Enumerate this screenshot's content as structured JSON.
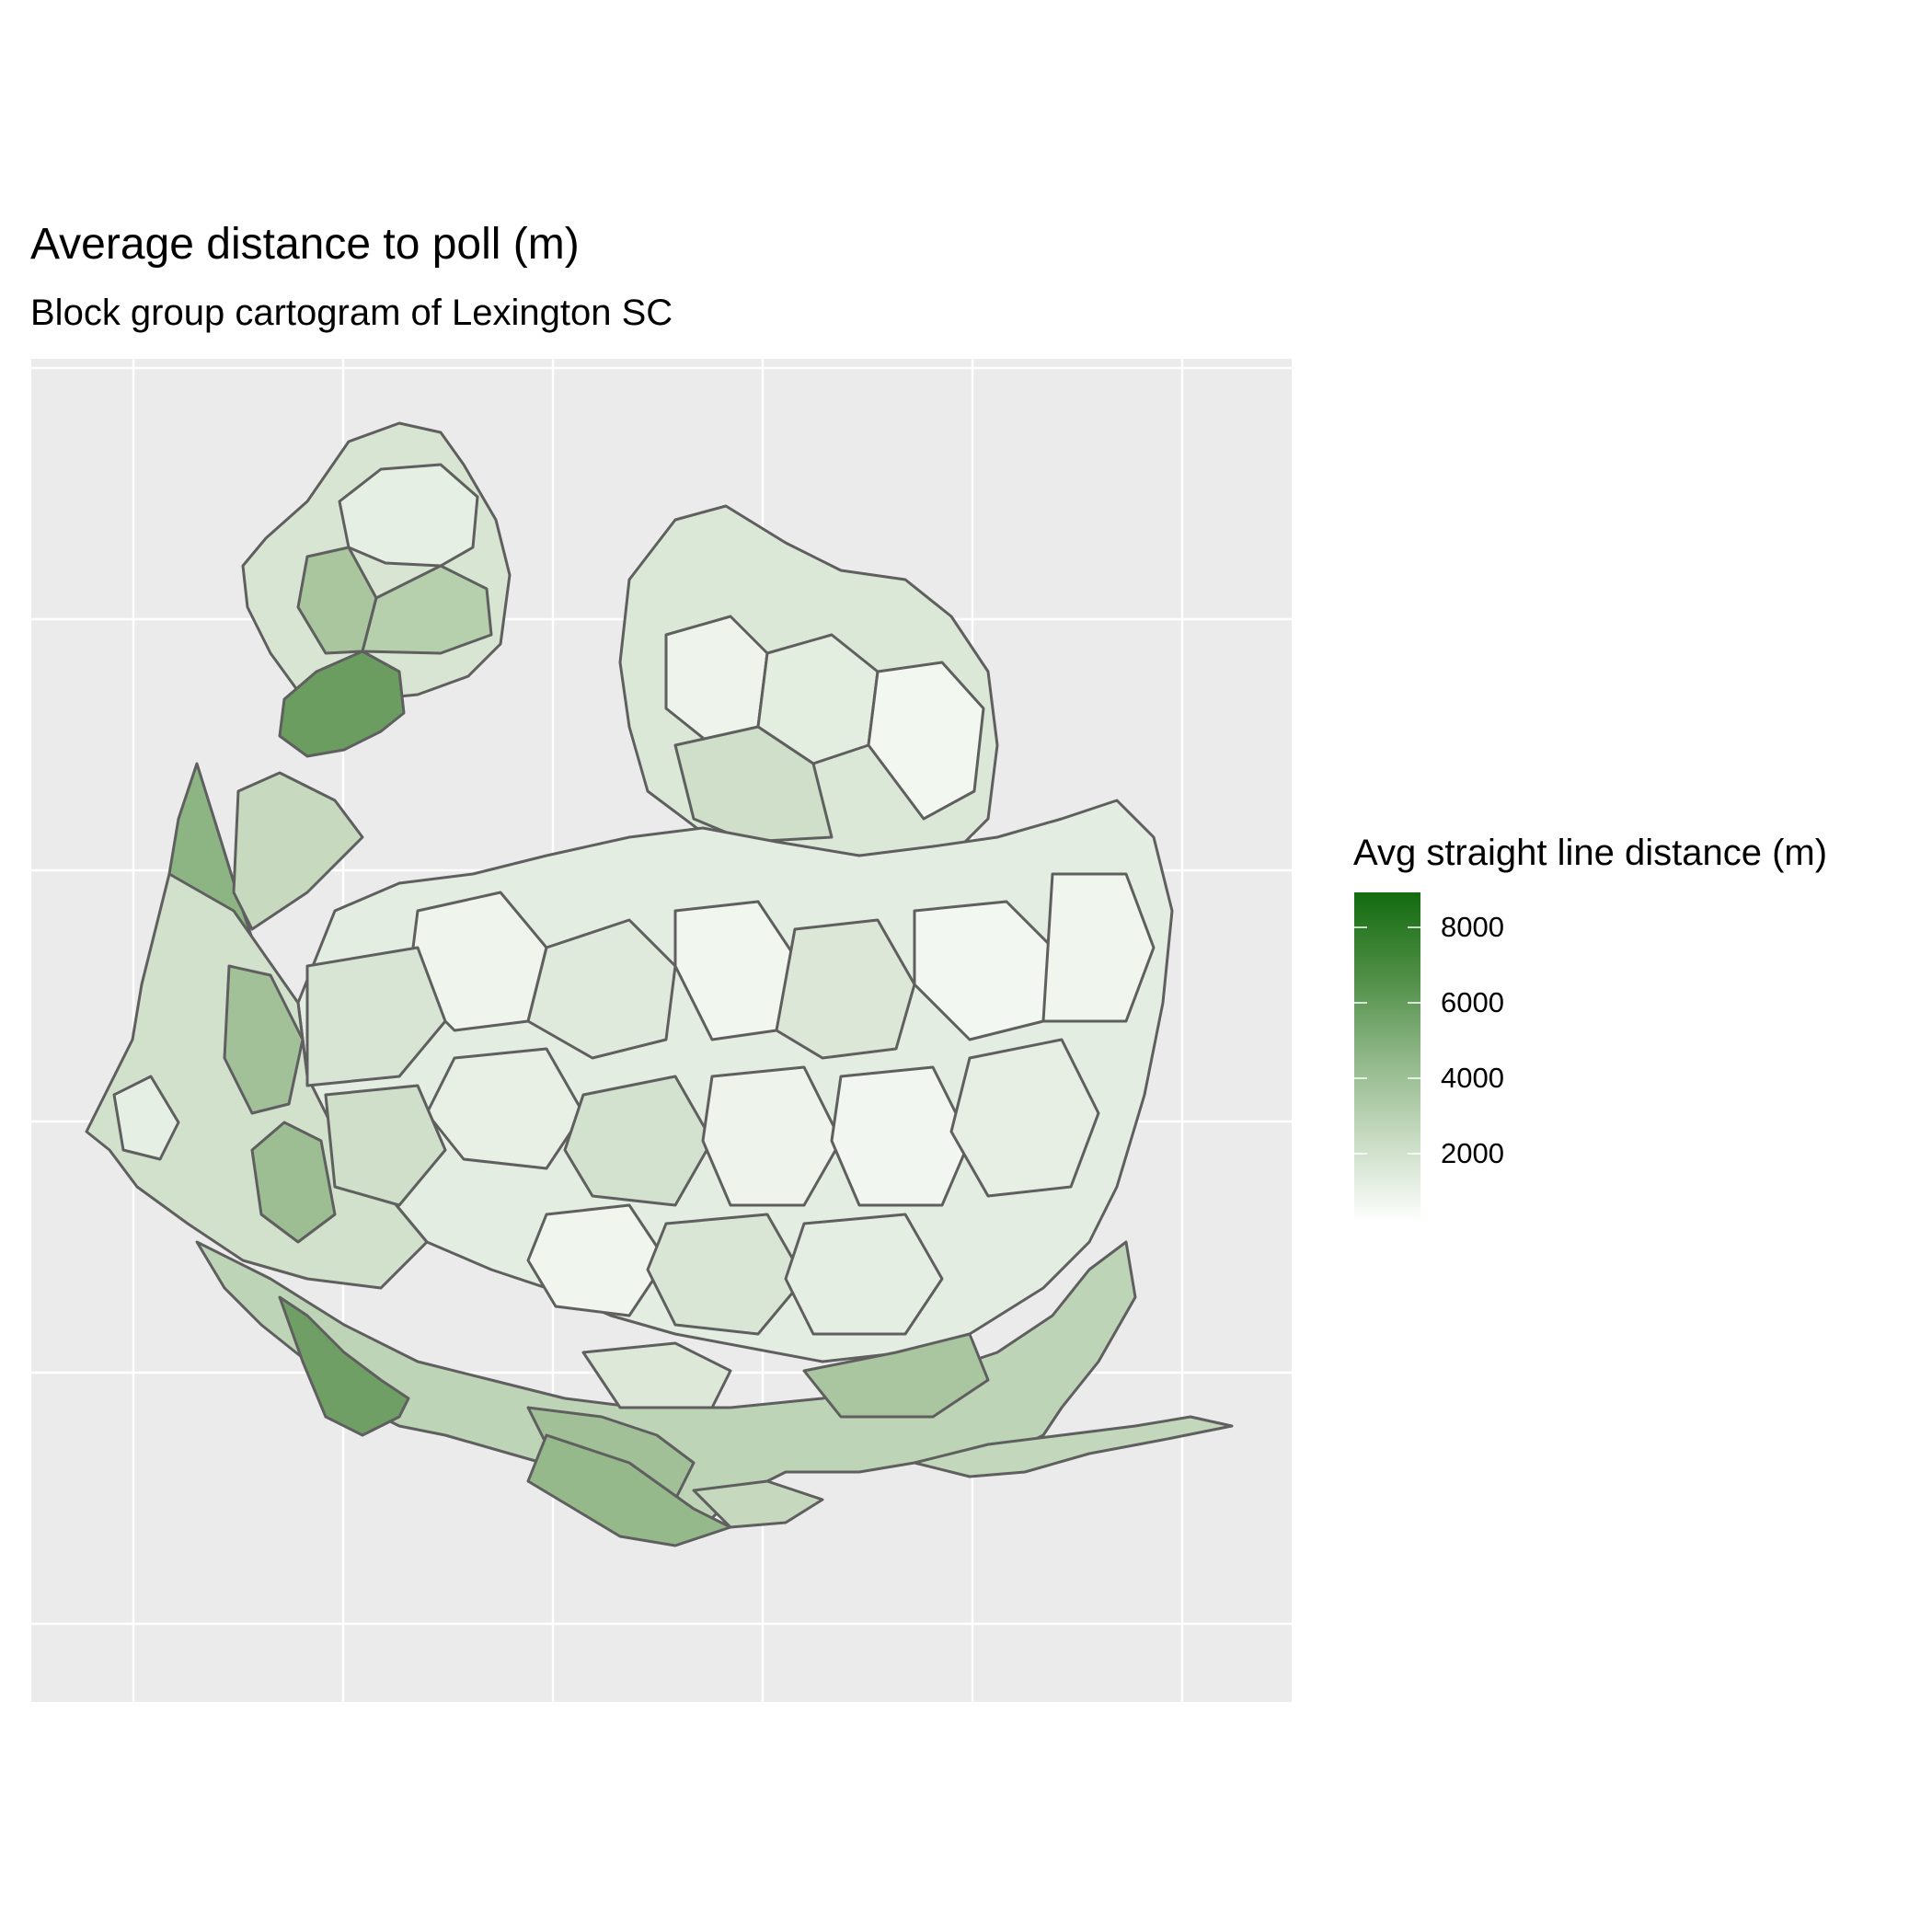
{
  "title": "Average distance to poll (m)",
  "subtitle": "Block group cartogram of Lexington SC",
  "legend": {
    "title": "Avg straight line distance (m)",
    "ticks": [
      "8000",
      "6000",
      "4000",
      "2000"
    ],
    "low_color": "#ffffff",
    "high_color": "#136b0f"
  },
  "colors": {
    "panel_background": "#ebebeb",
    "grid": "#ffffff",
    "outline": "#5f5f5f"
  },
  "chart_data": {
    "type": "choropleth cartogram",
    "fill_variable": "Avg straight line distance (m)",
    "scale_range": [
      0,
      9000
    ],
    "grid": true,
    "axis_labels_shown": false,
    "legend_position": "right"
  }
}
